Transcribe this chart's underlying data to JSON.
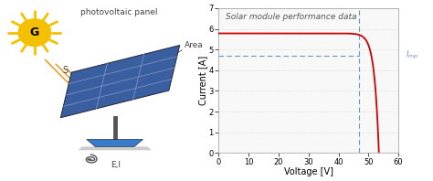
{
  "title": "Solar module performance data",
  "xlabel": "Voltage [V]",
  "ylabel": "Current [A]",
  "xlim": [
    0,
    60
  ],
  "ylim": [
    0,
    7
  ],
  "xticks": [
    0,
    10,
    20,
    30,
    40,
    50,
    60
  ],
  "yticks": [
    0,
    1,
    2,
    3,
    4,
    5,
    6,
    7
  ],
  "isc": 5.78,
  "voc": 53.5,
  "vmp": 47.0,
  "imp": 4.72,
  "curve_color": "#cc0000",
  "dashed_color": "#6699bb",
  "title_fontsize": 6.5,
  "axis_fontsize": 7,
  "tick_fontsize": 6,
  "annotation_fontsize": 7,
  "sun_color": "#f5c000",
  "sun_ray_color": "#f5c000",
  "arrow_color": "#e8a030",
  "panel_color": "#3a5fa0",
  "panel_highlight": "#6688cc",
  "stand_color": "#555555",
  "base_color": "#3a7acc",
  "text_color": "#444444"
}
